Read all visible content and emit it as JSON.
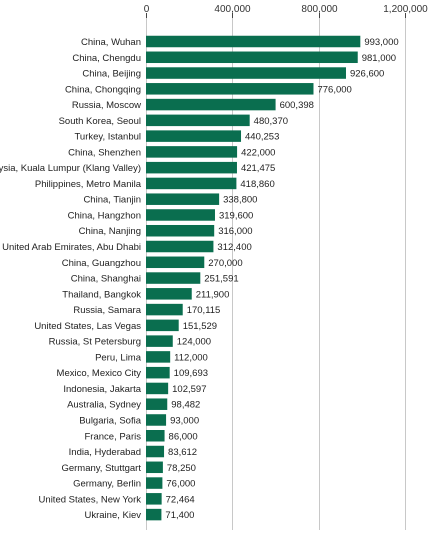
{
  "chart_data": {
    "type": "bar",
    "orientation": "horizontal",
    "title": "",
    "xlabel": "",
    "ylabel": "",
    "xlim": [
      0,
      1200000
    ],
    "x_ticks": [
      0,
      400000,
      800000,
      1200000
    ],
    "x_tick_labels": [
      "0",
      "400,000",
      "800,000",
      "1,200,000"
    ],
    "axis_position": "top",
    "grid": true,
    "bar_color": "#0a6e4f",
    "categories": [
      "China, Wuhan",
      "China, Chengdu",
      "China, Beijing",
      "China, Chongqing",
      "Russia, Moscow",
      "South Korea, Seoul",
      "Turkey, Istanbul",
      "China, Shenzhen",
      "Malaysia, Kuala Lumpur (Klang Valley)",
      "Philippines, Metro Manila",
      "China, Tianjin",
      "China, Hangzhon",
      "China, Nanjing",
      "United Arab Emirates, Abu Dhabi",
      "China, Guangzhou",
      "China, Shanghai",
      "Thailand, Bangkok",
      "Russia, Samara",
      "United States, Las Vegas",
      "Russia, St Petersburg",
      "Peru, Lima",
      "Mexico, Mexico City",
      "Indonesia, Jakarta",
      "Australia, Sydney",
      "Bulgaria, Sofia",
      "France, Paris",
      "India, Hyderabad",
      "Germany, Stuttgart",
      "Germany, Berlin",
      "United States, New York",
      "Ukraine, Kiev"
    ],
    "values": [
      993000,
      981000,
      926600,
      776000,
      600398,
      480370,
      440253,
      422000,
      421475,
      418860,
      338800,
      319600,
      316000,
      312400,
      270000,
      251591,
      211900,
      170115,
      151529,
      124000,
      112000,
      109693,
      102597,
      98482,
      93000,
      86000,
      83612,
      78250,
      76000,
      72464,
      71400
    ],
    "value_labels": [
      "993,000",
      "981,000",
      "926,600",
      "776,000",
      "600,398",
      "480,370",
      "440,253",
      "422,000",
      "421,475",
      "418,860",
      "338,800",
      "319,600",
      "316,000",
      "312,400",
      "270,000",
      "251,591",
      "211,900",
      "170,115",
      "151,529",
      "124,000",
      "112,000",
      "109,693",
      "102,597",
      "98,482",
      "93,000",
      "86,000",
      "83,612",
      "78,250",
      "76,000",
      "72,464",
      "71,400"
    ]
  }
}
